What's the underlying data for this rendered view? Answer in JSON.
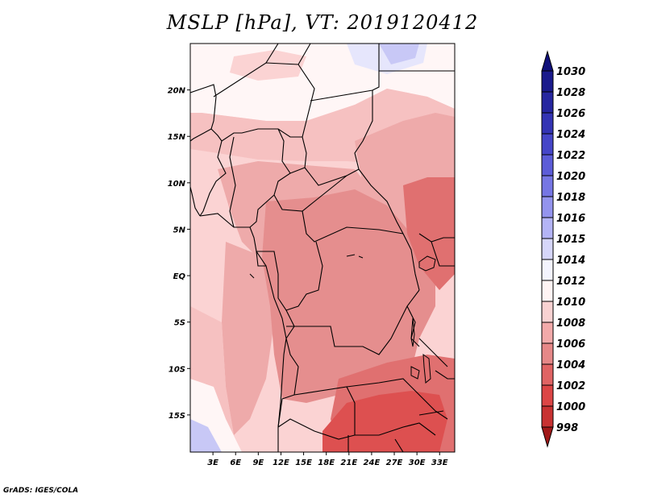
{
  "title": "MSLP [hPa], VT: 2019120412",
  "footer": "GrADS: IGES/COLA",
  "map": {
    "lat_range": [
      -19,
      25
    ],
    "lon_range": [
      0,
      35
    ],
    "lat_ticks": [
      {
        "value": 20,
        "label": "20N"
      },
      {
        "value": 15,
        "label": "15N"
      },
      {
        "value": 10,
        "label": "10N"
      },
      {
        "value": 5,
        "label": "5N"
      },
      {
        "value": 0,
        "label": "EQ"
      },
      {
        "value": -5,
        "label": "5S"
      },
      {
        "value": -10,
        "label": "10S"
      },
      {
        "value": -15,
        "label": "15S"
      }
    ],
    "lon_ticks": [
      {
        "value": 3,
        "label": "3E"
      },
      {
        "value": 6,
        "label": "6E"
      },
      {
        "value": 9,
        "label": "9E"
      },
      {
        "value": 12,
        "label": "12E"
      },
      {
        "value": 15,
        "label": "15E"
      },
      {
        "value": 18,
        "label": "18E"
      },
      {
        "value": 21,
        "label": "21E"
      },
      {
        "value": 24,
        "label": "24E"
      },
      {
        "value": 27,
        "label": "27E"
      },
      {
        "value": 30,
        "label": "30E"
      },
      {
        "value": 33,
        "label": "33E"
      }
    ]
  },
  "colorbar": {
    "levels": [
      {
        "label": "1030",
        "color": "#1a1a8c"
      },
      {
        "label": "1028",
        "color": "#2626a0"
      },
      {
        "label": "1026",
        "color": "#3434b4"
      },
      {
        "label": "1024",
        "color": "#4646c8"
      },
      {
        "label": "1022",
        "color": "#5c5cd8"
      },
      {
        "label": "1020",
        "color": "#7676e4"
      },
      {
        "label": "1018",
        "color": "#9494ee"
      },
      {
        "label": "1016",
        "color": "#b4b4f6"
      },
      {
        "label": "1015",
        "color": "#d6d6fa"
      },
      {
        "label": "1014",
        "color": "#f4f4fe"
      },
      {
        "label": "1012",
        "color": "#fff4f4"
      },
      {
        "label": "1010",
        "color": "#f9d2d2"
      },
      {
        "label": "1008",
        "color": "#f2aaaa"
      },
      {
        "label": "1006",
        "color": "#e68888"
      },
      {
        "label": "1004",
        "color": "#e06464"
      },
      {
        "label": "1002",
        "color": "#dc4646"
      },
      {
        "label": "1000",
        "color": "#c83232"
      },
      {
        "label": "998",
        "color": "#b22020"
      }
    ],
    "top_arrow_color": "#10107a",
    "bottom_arrow_color": "#a01818"
  },
  "regions": {
    "white": "#fff6f6",
    "light": "#fbd3d3",
    "pink": "#f6c1c1",
    "medium": "#eeaaaa",
    "dark": "#e58e8e",
    "deep": "#e07070",
    "red": "#dd5050",
    "blue": "#c8c8f6",
    "bluelight": "#e6e6fc"
  }
}
